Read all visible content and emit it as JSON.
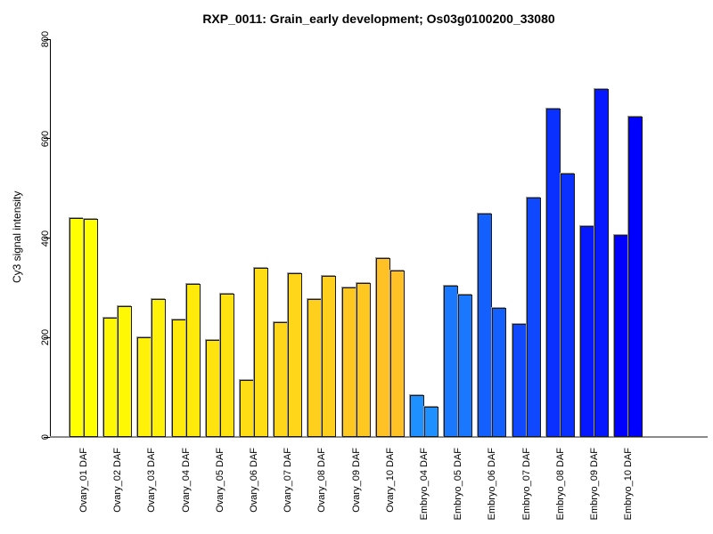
{
  "chart_data": {
    "type": "bar",
    "title": "RXP_0011: Grain_early development; Os03g0100200_33080",
    "xlabel": "",
    "ylabel": "Cy3 signal intensity",
    "ylim": [
      0,
      800
    ],
    "yticks": [
      0,
      200,
      400,
      600,
      800
    ],
    "grid": false,
    "legend_position": "none",
    "bars_per_group": 2,
    "bar_border_color": "#1a1a1a",
    "axis_color": "#000000",
    "baseline_color": "#8a8a8a",
    "groups": [
      {
        "label": "Ovary_01 DAF",
        "color": "#FFFF00",
        "values": [
          440,
          438
        ]
      },
      {
        "label": "Ovary_02 DAF",
        "color": "#FFF804",
        "values": [
          240,
          263
        ]
      },
      {
        "label": "Ovary_03 DAF",
        "color": "#FFF108",
        "values": [
          200,
          278
        ]
      },
      {
        "label": "Ovary_04 DAF",
        "color": "#FFEA0C",
        "values": [
          236,
          308
        ]
      },
      {
        "label": "Ovary_05 DAF",
        "color": "#FFE310",
        "values": [
          195,
          288
        ]
      },
      {
        "label": "Ovary_06 DAF",
        "color": "#FFDD15",
        "values": [
          115,
          340
        ]
      },
      {
        "label": "Ovary_07 DAF",
        "color": "#FFD619",
        "values": [
          230,
          330
        ]
      },
      {
        "label": "Ovary_08 DAF",
        "color": "#FFCF1D",
        "values": [
          277,
          324
        ]
      },
      {
        "label": "Ovary_09 DAF",
        "color": "#FFC821",
        "values": [
          300,
          309
        ]
      },
      {
        "label": "Ovary_10 DAF",
        "color": "#FFC125",
        "values": [
          360,
          335
        ]
      },
      {
        "label": "Embryo_04 DAF",
        "color": "#1E90FF",
        "values": [
          84,
          61
        ]
      },
      {
        "label": "Embryo_05 DAF",
        "color": "#1978FF",
        "values": [
          305,
          286
        ]
      },
      {
        "label": "Embryo_06 DAF",
        "color": "#1460FF",
        "values": [
          450,
          260
        ]
      },
      {
        "label": "Embryo_07 DAF",
        "color": "#0F48FF",
        "values": [
          227,
          481
        ]
      },
      {
        "label": "Embryo_08 DAF",
        "color": "#0A30FF",
        "values": [
          660,
          530
        ]
      },
      {
        "label": "Embryo_09 DAF",
        "color": "#0518FF",
        "values": [
          425,
          700
        ]
      },
      {
        "label": "Embryo_10 DAF",
        "color": "#0000FF",
        "values": [
          406,
          645
        ]
      }
    ]
  }
}
